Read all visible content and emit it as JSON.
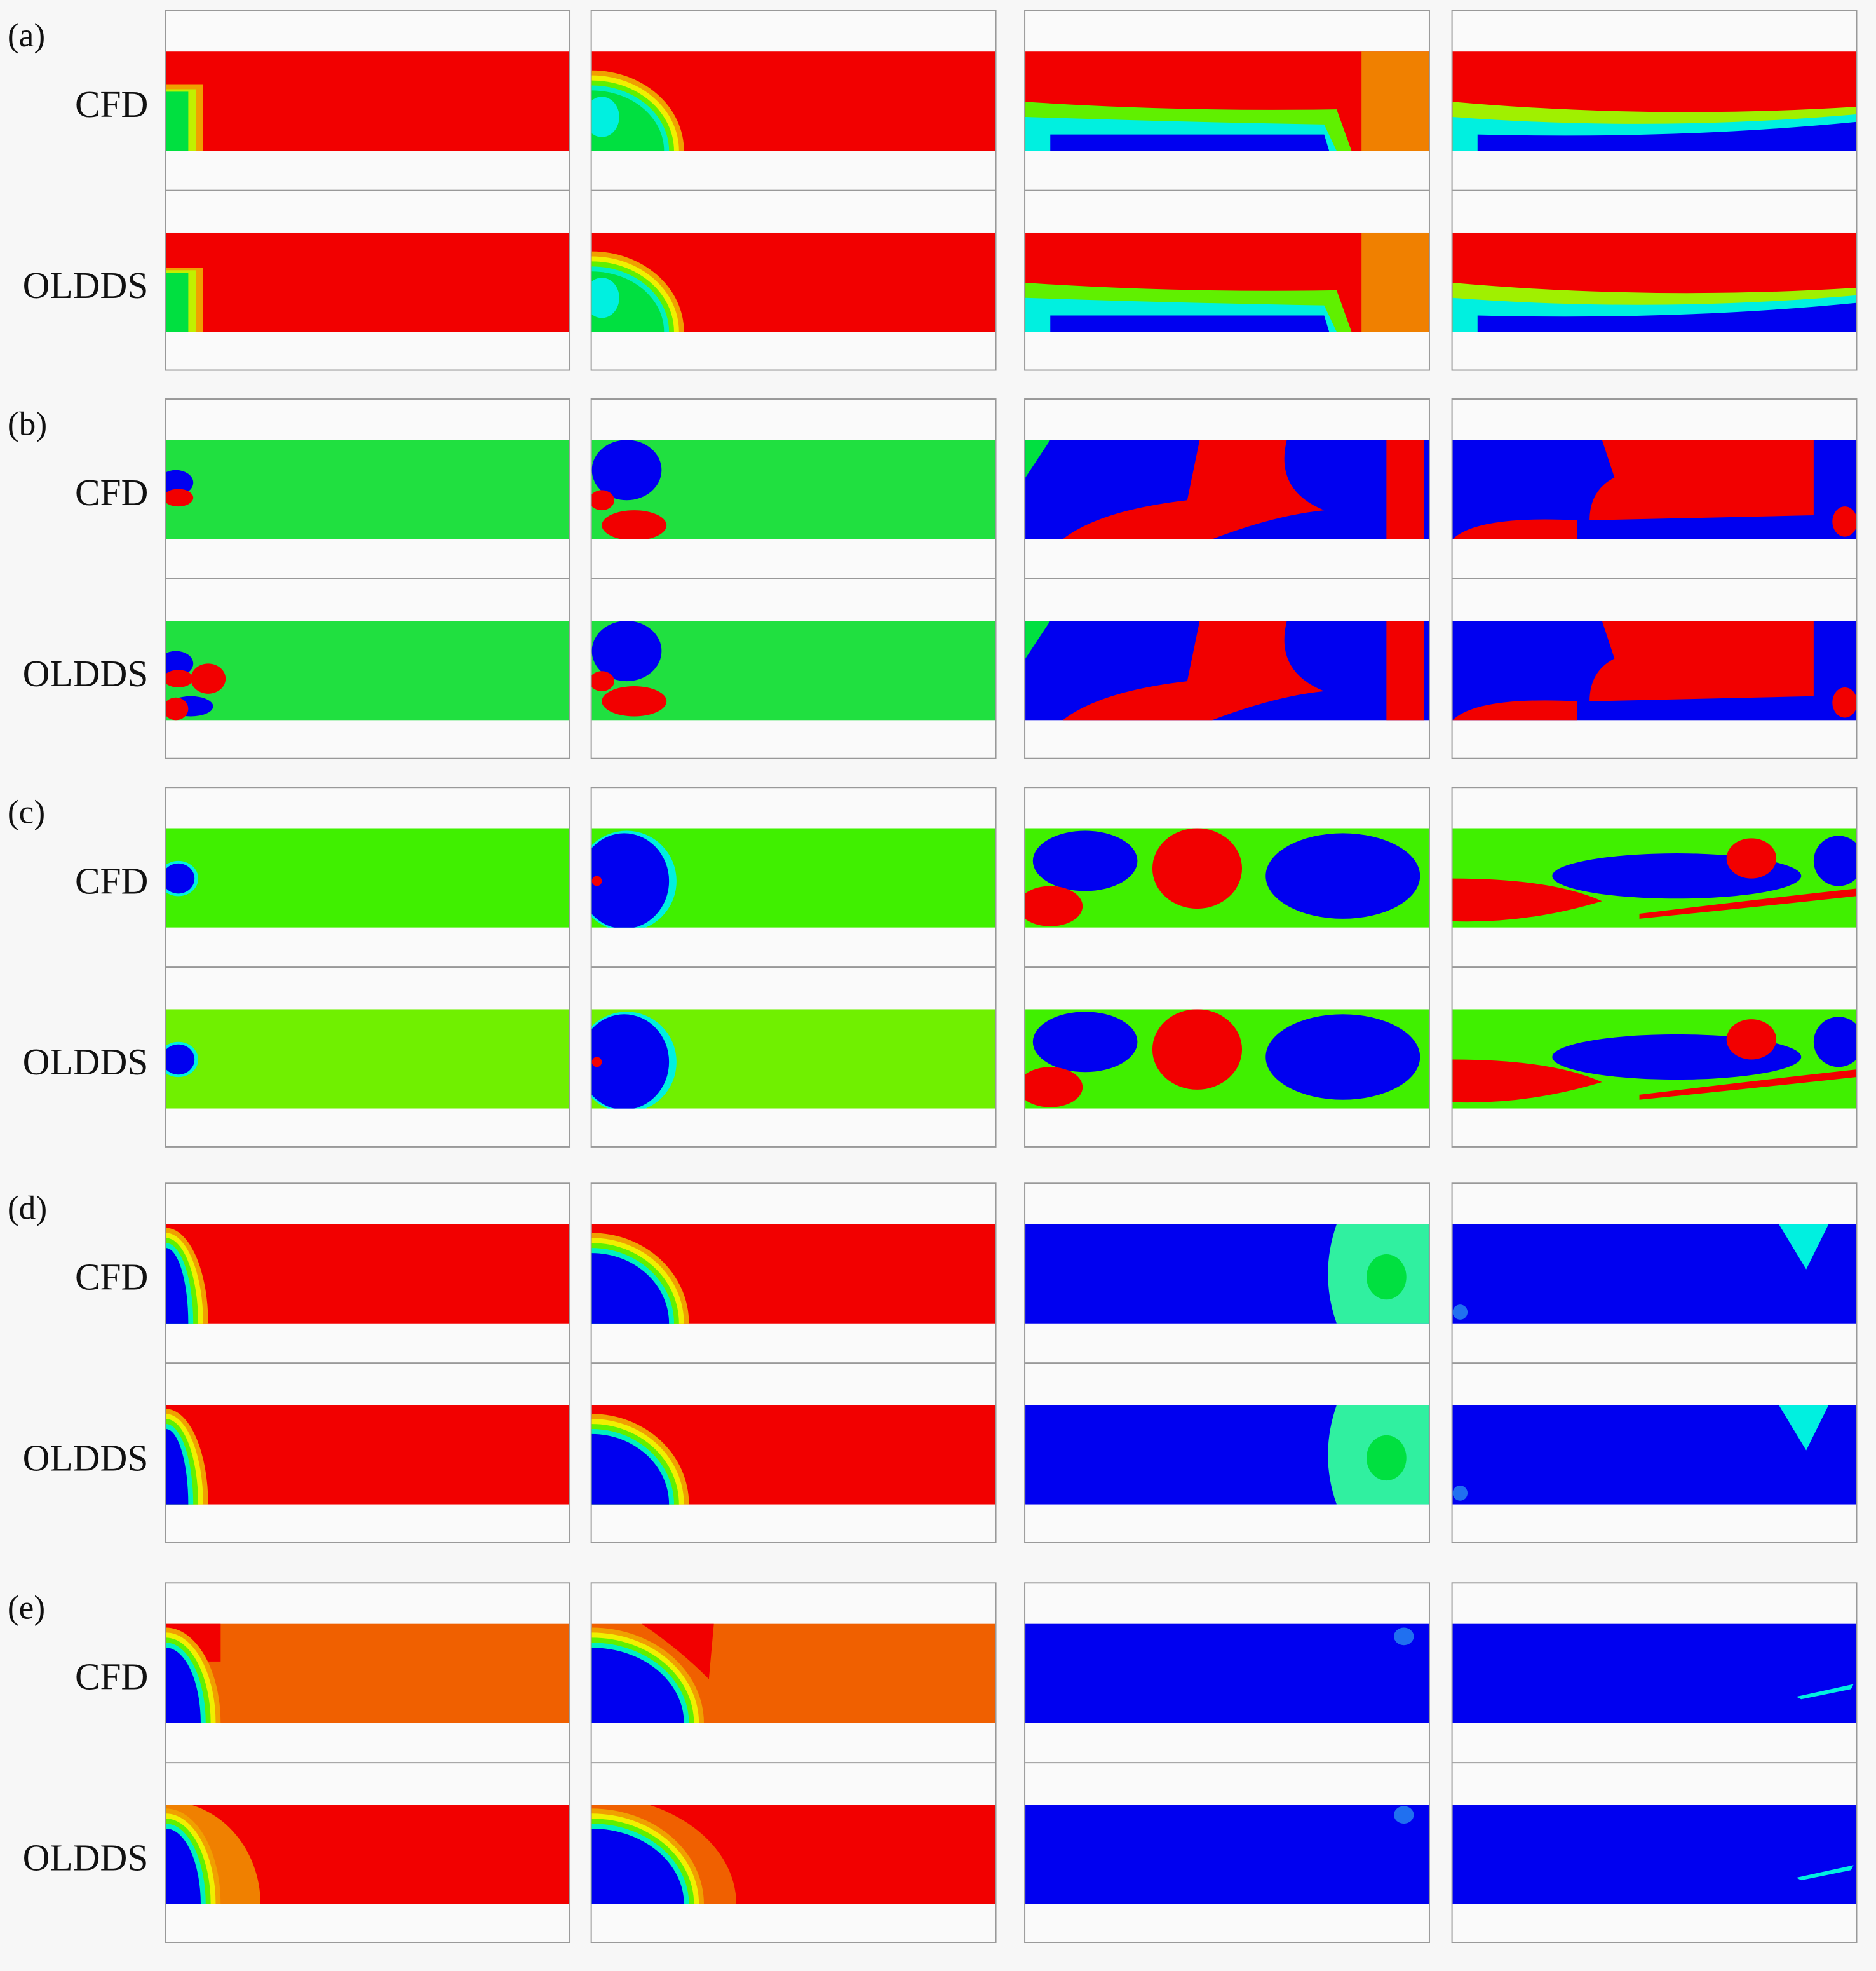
{
  "figure": {
    "rows": [
      {
        "label": "(a)",
        "methods": [
          "CFD",
          "OLDDS"
        ]
      },
      {
        "label": "(b)",
        "methods": [
          "CFD",
          "OLDDS"
        ]
      },
      {
        "label": "(c)",
        "methods": [
          "CFD",
          "OLDDS"
        ]
      },
      {
        "label": "(d)",
        "methods": [
          "CFD",
          "OLDDS"
        ]
      },
      {
        "label": "(e)",
        "methods": [
          "CFD",
          "OLDDS"
        ]
      }
    ],
    "columns": 4,
    "colors": {
      "red": "#f20000",
      "orange": "#f06000",
      "green": "#00e040",
      "lime": "#60f000",
      "blue": "#0000f0",
      "cyan": "#00f0e0",
      "yellow": "#f0f000"
    }
  }
}
